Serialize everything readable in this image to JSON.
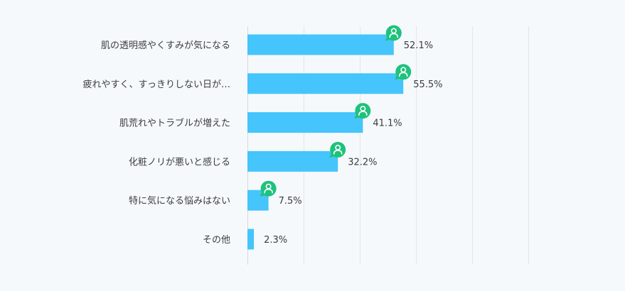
{
  "chart_data": {
    "type": "bar",
    "orientation": "horizontal",
    "categories": [
      "肌の透明感やくすみが気になる",
      "疲れやすく、すっきりしない日が…",
      "肌荒れやトラブルが増えた",
      "化粧ノリが悪いと感じる",
      "特に気になる悩みはない",
      "その他"
    ],
    "values": [
      52.1,
      55.5,
      41.1,
      32.2,
      7.5,
      2.3
    ],
    "value_labels": [
      "52.1%",
      "55.5%",
      "41.1%",
      "32.2%",
      "7.5%",
      "2.3%"
    ],
    "xlim": [
      0,
      100
    ],
    "grid": true,
    "marker_on_bars": [
      true,
      true,
      true,
      true,
      true,
      false
    ],
    "colors": {
      "bar": "#45c5fb",
      "marker": "#1ec27c",
      "marker_icon": "#ffffff",
      "text": "#3c3c3c",
      "grid": "#e2e6e9",
      "background": "#f5f9fb"
    },
    "marker_icon": "person-icon"
  }
}
